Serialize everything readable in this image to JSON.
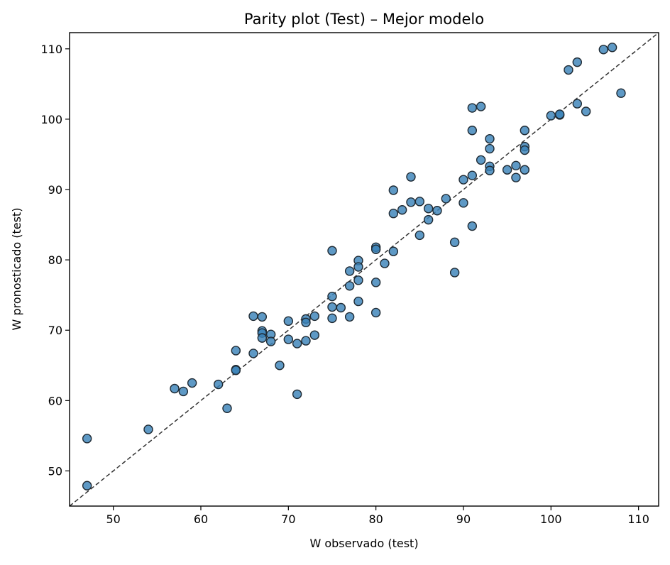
{
  "chart_data": {
    "type": "scatter",
    "title": "Parity plot (Test) – Mejor modelo",
    "xlabel": "W observado (test)",
    "ylabel": "W pronosticado (test)",
    "xlim": [
      45,
      112.3
    ],
    "ylim": [
      45,
      112.3
    ],
    "xticks": [
      50,
      60,
      70,
      80,
      90,
      100,
      110
    ],
    "yticks": [
      50,
      60,
      70,
      80,
      90,
      100,
      110
    ],
    "grid": false,
    "reference_line": {
      "style": "dashed",
      "from": [
        45,
        45
      ],
      "to": [
        112.3,
        112.3
      ],
      "color": "#333333"
    },
    "marker_color": "#3b82b8",
    "marker_edge_color": "#1f2a33",
    "points": [
      {
        "x": 47,
        "y": 54.6
      },
      {
        "x": 47,
        "y": 47.9
      },
      {
        "x": 54,
        "y": 55.9
      },
      {
        "x": 57,
        "y": 61.7
      },
      {
        "x": 58,
        "y": 61.3
      },
      {
        "x": 59,
        "y": 62.5
      },
      {
        "x": 62,
        "y": 62.3
      },
      {
        "x": 63,
        "y": 58.9
      },
      {
        "x": 64,
        "y": 67.1
      },
      {
        "x": 64,
        "y": 64.4
      },
      {
        "x": 64,
        "y": 64.3
      },
      {
        "x": 66,
        "y": 72.0
      },
      {
        "x": 66,
        "y": 66.7
      },
      {
        "x": 67,
        "y": 71.9
      },
      {
        "x": 67,
        "y": 69.9
      },
      {
        "x": 67,
        "y": 69.6
      },
      {
        "x": 67,
        "y": 68.9
      },
      {
        "x": 68,
        "y": 69.4
      },
      {
        "x": 68,
        "y": 68.4
      },
      {
        "x": 69,
        "y": 65.0
      },
      {
        "x": 70,
        "y": 71.3
      },
      {
        "x": 70,
        "y": 68.7
      },
      {
        "x": 71,
        "y": 68.1
      },
      {
        "x": 71,
        "y": 60.9
      },
      {
        "x": 72,
        "y": 71.6
      },
      {
        "x": 72,
        "y": 71.1
      },
      {
        "x": 72,
        "y": 68.5
      },
      {
        "x": 73,
        "y": 72.0
      },
      {
        "x": 73,
        "y": 69.3
      },
      {
        "x": 75,
        "y": 81.3
      },
      {
        "x": 75,
        "y": 74.8
      },
      {
        "x": 75,
        "y": 73.3
      },
      {
        "x": 75,
        "y": 71.7
      },
      {
        "x": 76,
        "y": 73.2
      },
      {
        "x": 77,
        "y": 78.4
      },
      {
        "x": 77,
        "y": 76.3
      },
      {
        "x": 77,
        "y": 71.9
      },
      {
        "x": 78,
        "y": 79.9
      },
      {
        "x": 78,
        "y": 79.0
      },
      {
        "x": 78,
        "y": 77.1
      },
      {
        "x": 78,
        "y": 74.1
      },
      {
        "x": 80,
        "y": 81.8
      },
      {
        "x": 80,
        "y": 81.5
      },
      {
        "x": 80,
        "y": 76.8
      },
      {
        "x": 80,
        "y": 72.5
      },
      {
        "x": 81,
        "y": 79.5
      },
      {
        "x": 82,
        "y": 89.9
      },
      {
        "x": 82,
        "y": 86.6
      },
      {
        "x": 82,
        "y": 81.2
      },
      {
        "x": 83,
        "y": 87.1
      },
      {
        "x": 84,
        "y": 91.8
      },
      {
        "x": 84,
        "y": 88.2
      },
      {
        "x": 85,
        "y": 88.3
      },
      {
        "x": 85,
        "y": 83.5
      },
      {
        "x": 86,
        "y": 87.3
      },
      {
        "x": 86,
        "y": 85.7
      },
      {
        "x": 87,
        "y": 87.0
      },
      {
        "x": 88,
        "y": 88.7
      },
      {
        "x": 89,
        "y": 82.5
      },
      {
        "x": 89,
        "y": 78.2
      },
      {
        "x": 90,
        "y": 91.4
      },
      {
        "x": 90,
        "y": 88.1
      },
      {
        "x": 91,
        "y": 101.6
      },
      {
        "x": 91,
        "y": 98.4
      },
      {
        "x": 91,
        "y": 92.0
      },
      {
        "x": 91,
        "y": 84.8
      },
      {
        "x": 92,
        "y": 101.8
      },
      {
        "x": 92,
        "y": 94.2
      },
      {
        "x": 93,
        "y": 97.2
      },
      {
        "x": 93,
        "y": 95.8
      },
      {
        "x": 93,
        "y": 93.3
      },
      {
        "x": 93,
        "y": 92.7
      },
      {
        "x": 95,
        "y": 92.8
      },
      {
        "x": 96,
        "y": 93.4
      },
      {
        "x": 96,
        "y": 91.7
      },
      {
        "x": 97,
        "y": 98.4
      },
      {
        "x": 97,
        "y": 96.1
      },
      {
        "x": 97,
        "y": 95.6
      },
      {
        "x": 97,
        "y": 92.8
      },
      {
        "x": 100,
        "y": 100.5
      },
      {
        "x": 101,
        "y": 100.6
      },
      {
        "x": 101,
        "y": 100.7
      },
      {
        "x": 102,
        "y": 107.0
      },
      {
        "x": 103,
        "y": 108.1
      },
      {
        "x": 103,
        "y": 102.2
      },
      {
        "x": 104,
        "y": 101.1
      },
      {
        "x": 106,
        "y": 109.9
      },
      {
        "x": 107,
        "y": 110.2
      },
      {
        "x": 108,
        "y": 103.7
      }
    ]
  }
}
